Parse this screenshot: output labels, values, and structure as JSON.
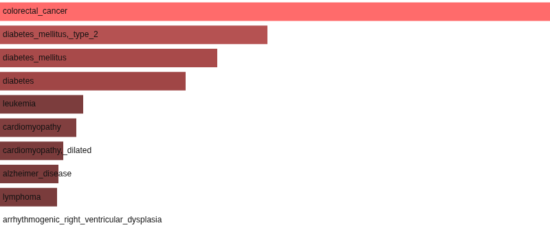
{
  "chart_data": {
    "type": "bar",
    "orientation": "horizontal",
    "categories": [
      "colorectal_cancer",
      "diabetes_mellitus,_type_2",
      "diabetes_mellitus",
      "diabetes",
      "leukemia",
      "cardiomyopathy",
      "cardiomyopathy,_dilated",
      "alzheimer_disease",
      "lymphoma",
      "arrhythmogenic_right_ventricular_dysplasia"
    ],
    "values": [
      800,
      389,
      316,
      270,
      121,
      111,
      92,
      85,
      83,
      0
    ],
    "colors": [
      "#ff6b6b",
      "#b55252",
      "#a84a4a",
      "#a04646",
      "#7c3d3d",
      "#813f3f",
      "#7b3c3c",
      "#7a3c3c",
      "#7a3c3c",
      "#7a3c3c"
    ],
    "xlim": [
      0,
      800
    ],
    "grid": false,
    "tick_labels": false
  }
}
